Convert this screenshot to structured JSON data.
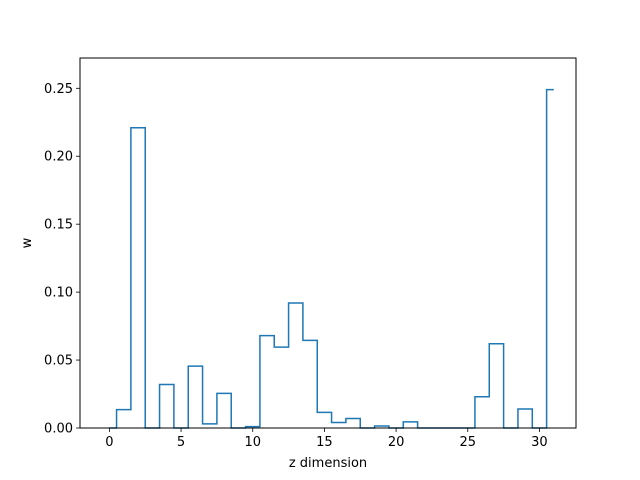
{
  "chart_data": {
    "type": "line",
    "drawstyle": "steps-mid",
    "title": "",
    "xlabel": "z dimension",
    "ylabel": "w",
    "xlim": [
      -2.05,
      32.55
    ],
    "ylim": [
      0,
      0.2723
    ],
    "xticks": [
      0,
      5,
      10,
      15,
      20,
      25,
      30
    ],
    "xtick_labels": [
      "0",
      "5",
      "10",
      "15",
      "20",
      "25",
      "30"
    ],
    "yticks": [
      0.0,
      0.05,
      0.1,
      0.15,
      0.2,
      0.25
    ],
    "ytick_labels": [
      "0.00",
      "0.05",
      "0.10",
      "0.15",
      "0.20",
      "0.25"
    ],
    "grid": false,
    "line_color": "#1f77b4",
    "series": [
      {
        "x": [
          0,
          1,
          2,
          3,
          4,
          5,
          6,
          7,
          8,
          9,
          10,
          11,
          12,
          13,
          14,
          15,
          16,
          17,
          18,
          19,
          20,
          21,
          22,
          23,
          24,
          25,
          26,
          27,
          28,
          29,
          30,
          31
        ],
        "values": [
          0.0,
          0.0135,
          0.221,
          0.0,
          0.032,
          0.0,
          0.0455,
          0.003,
          0.0255,
          0.0,
          0.001,
          0.068,
          0.0595,
          0.092,
          0.0645,
          0.0115,
          0.004,
          0.007,
          0.0,
          0.0015,
          0.0,
          0.0045,
          0.0,
          0.0,
          0.0,
          0.0,
          0.023,
          0.062,
          0.0,
          0.014,
          0.0,
          0.249
        ]
      }
    ]
  }
}
